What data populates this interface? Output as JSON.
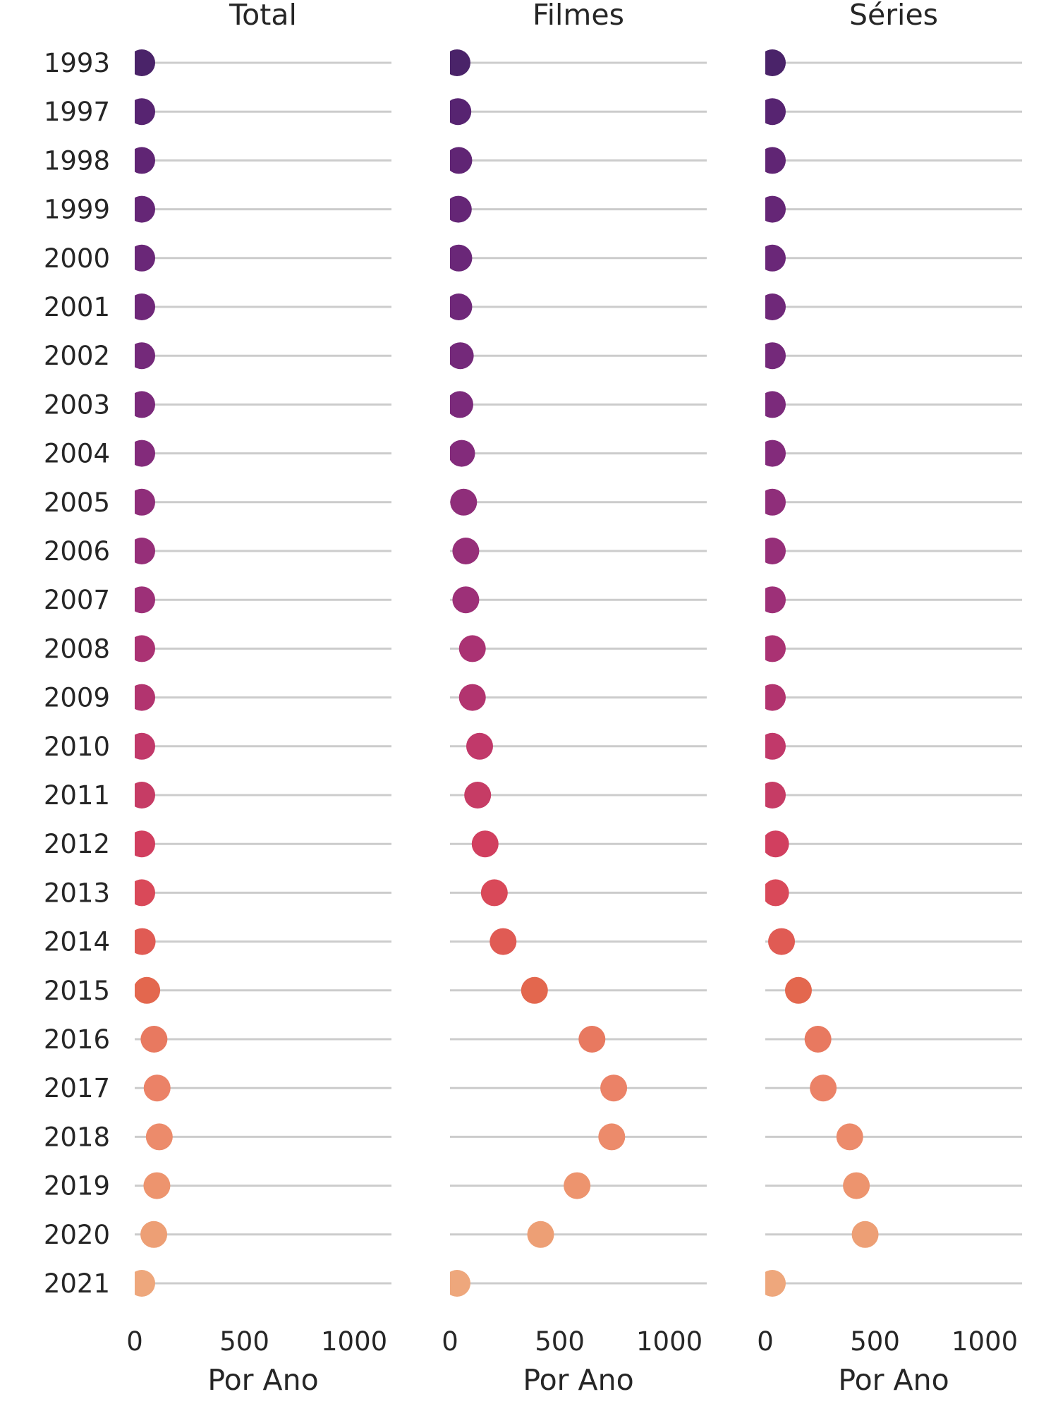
{
  "chart_data": [
    {
      "type": "scatter",
      "title": "Total",
      "xlabel": "Por Ano",
      "ylabel": "",
      "xlim": [
        0,
        1170
      ],
      "xticks": [
        0,
        500,
        1000
      ],
      "grid": "horizontal",
      "categories": [
        "1993",
        "1997",
        "1998",
        "1999",
        "2000",
        "2001",
        "2002",
        "2003",
        "2004",
        "2005",
        "2006",
        "2007",
        "2008",
        "2009",
        "2010",
        "2011",
        "2012",
        "2013",
        "2014",
        "2015",
        "2016",
        "2017",
        "2018",
        "2019",
        "2020",
        "2021"
      ],
      "values": [
        3,
        4,
        5,
        5,
        5,
        5,
        6,
        6,
        7,
        8,
        9,
        9,
        13,
        14,
        18,
        17,
        22,
        27,
        34,
        55,
        88,
        102,
        112,
        101,
        87,
        3
      ]
    },
    {
      "type": "scatter",
      "title": "Filmes",
      "xlabel": "Por Ano",
      "ylabel": "",
      "xlim": [
        0,
        1170
      ],
      "xticks": [
        0,
        500,
        1000
      ],
      "grid": "horizontal",
      "categories": [
        "1993",
        "1997",
        "1998",
        "1999",
        "2000",
        "2001",
        "2002",
        "2003",
        "2004",
        "2005",
        "2006",
        "2007",
        "2008",
        "2009",
        "2010",
        "2011",
        "2012",
        "2013",
        "2014",
        "2015",
        "2016",
        "2017",
        "2018",
        "2019",
        "2020",
        "2021"
      ],
      "values": [
        30,
        36,
        40,
        38,
        40,
        40,
        47,
        45,
        53,
        62,
        72,
        72,
        102,
        102,
        135,
        126,
        160,
        202,
        242,
        385,
        647,
        746,
        737,
        579,
        413,
        10
      ]
    },
    {
      "type": "scatter",
      "title": "Séries",
      "xlabel": "Por Ano",
      "ylabel": "",
      "xlim": [
        0,
        1170
      ],
      "xticks": [
        0,
        500,
        1000
      ],
      "grid": "horizontal",
      "categories": [
        "1993",
        "1997",
        "1998",
        "1999",
        "2000",
        "2001",
        "2002",
        "2003",
        "2004",
        "2005",
        "2006",
        "2007",
        "2008",
        "2009",
        "2010",
        "2011",
        "2012",
        "2013",
        "2014",
        "2015",
        "2016",
        "2017",
        "2018",
        "2019",
        "2020",
        "2021"
      ],
      "values": [
        0,
        0,
        2,
        3,
        2,
        2,
        4,
        5,
        8,
        11,
        11,
        11,
        18,
        24,
        25,
        27,
        47,
        47,
        74,
        151,
        240,
        264,
        385,
        415,
        455,
        8
      ]
    }
  ],
  "colors": {
    "palette": [
      "#4a2369",
      "#572471",
      "#602574",
      "#652676",
      "#6a2778",
      "#6f2879",
      "#74297a",
      "#7b2a7b",
      "#832b7b",
      "#8f2e7a",
      "#962f79",
      "#9d3078",
      "#aa3273",
      "#b2346f",
      "#c1396a",
      "#c63c65",
      "#d13f5f",
      "#d94959",
      "#e05b54",
      "#e3674e",
      "#e87960",
      "#eb8267",
      "#ec8b6b",
      "#ed946e",
      "#ed9f75",
      "#eea77c"
    ]
  }
}
